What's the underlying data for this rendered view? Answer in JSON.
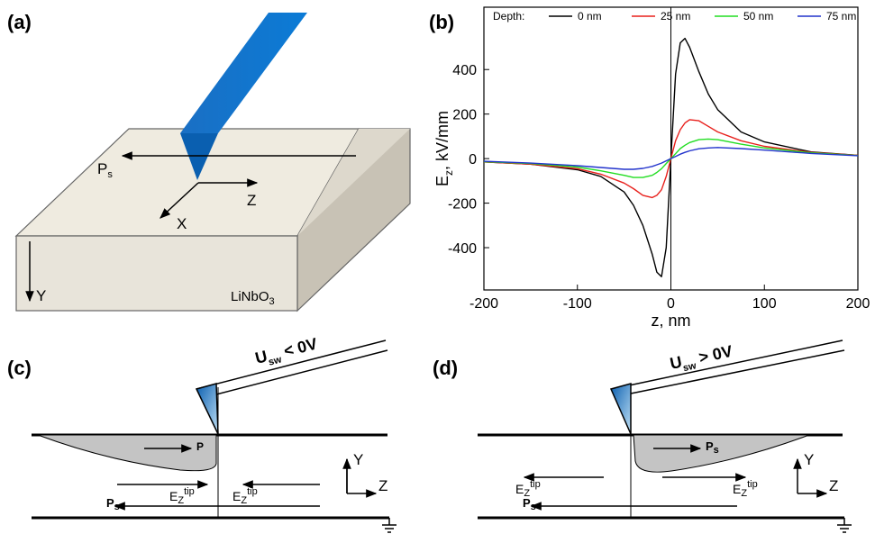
{
  "panels": {
    "a": {
      "label": "(a)",
      "ps": [
        "P",
        "s"
      ],
      "z": "Z",
      "x": "X",
      "y": "Y",
      "material": [
        "LiNbO",
        "3"
      ]
    },
    "b": {
      "label": "(b)"
    },
    "c": {
      "label": "(c)",
      "voltage": [
        "U",
        "sw",
        " < 0V"
      ],
      "polarization": "P",
      "field_left": [
        "E",
        "Z",
        "tip"
      ],
      "field_right": [
        "E",
        "Z",
        "tip"
      ],
      "ps": [
        "P",
        "s"
      ],
      "axis_y": "Y",
      "axis_z": "Z"
    },
    "d": {
      "label": "(d)",
      "voltage": [
        "U",
        "sw",
        " > 0V"
      ],
      "polarization": [
        "P",
        "s"
      ],
      "field_left": [
        "E",
        "Z",
        "tip"
      ],
      "field_right": [
        "E",
        "Z",
        "tip"
      ],
      "ps": [
        "P",
        "s"
      ],
      "axis_y": "Y",
      "axis_z": "Z"
    }
  },
  "chart_data": {
    "type": "line",
    "legend_title": "Depth:",
    "xlabel": "z, nm",
    "ylabel": [
      "E",
      "z",
      ", kV/mm"
    ],
    "x": [
      -200,
      -150,
      -100,
      -75,
      -50,
      -40,
      -30,
      -20,
      -15,
      -10,
      -5,
      0,
      5,
      10,
      15,
      20,
      30,
      40,
      50,
      75,
      100,
      150,
      200
    ],
    "series": [
      {
        "name": "0 nm",
        "color": "#000000",
        "values": [
          -15,
          -25,
          -50,
          -80,
          -150,
          -210,
          -300,
          -430,
          -510,
          -530,
          -400,
          0,
          380,
          520,
          540,
          500,
          390,
          290,
          220,
          120,
          75,
          30,
          15
        ]
      },
      {
        "name": "25 nm",
        "color": "#e8201c",
        "values": [
          -15,
          -25,
          -45,
          -70,
          -110,
          -135,
          -165,
          -175,
          -165,
          -140,
          -80,
          0,
          80,
          130,
          160,
          175,
          170,
          145,
          120,
          80,
          55,
          28,
          15
        ]
      },
      {
        "name": "50 nm",
        "color": "#22dd22",
        "values": [
          -14,
          -22,
          -38,
          -55,
          -75,
          -85,
          -85,
          -75,
          -62,
          -45,
          -22,
          0,
          22,
          45,
          60,
          72,
          85,
          88,
          85,
          65,
          48,
          26,
          14
        ]
      },
      {
        "name": "75 nm",
        "color": "#2233cc",
        "values": [
          -12,
          -20,
          -32,
          -40,
          -48,
          -48,
          -44,
          -35,
          -28,
          -20,
          -10,
          0,
          10,
          20,
          28,
          35,
          44,
          48,
          50,
          45,
          38,
          23,
          13
        ]
      }
    ],
    "xlim": [
      -200,
      200
    ],
    "ylim": [
      -590,
      680
    ],
    "xticks": [
      -200,
      -100,
      0,
      100,
      200
    ],
    "yticks": [
      -400,
      -200,
      0,
      200,
      400
    ]
  }
}
